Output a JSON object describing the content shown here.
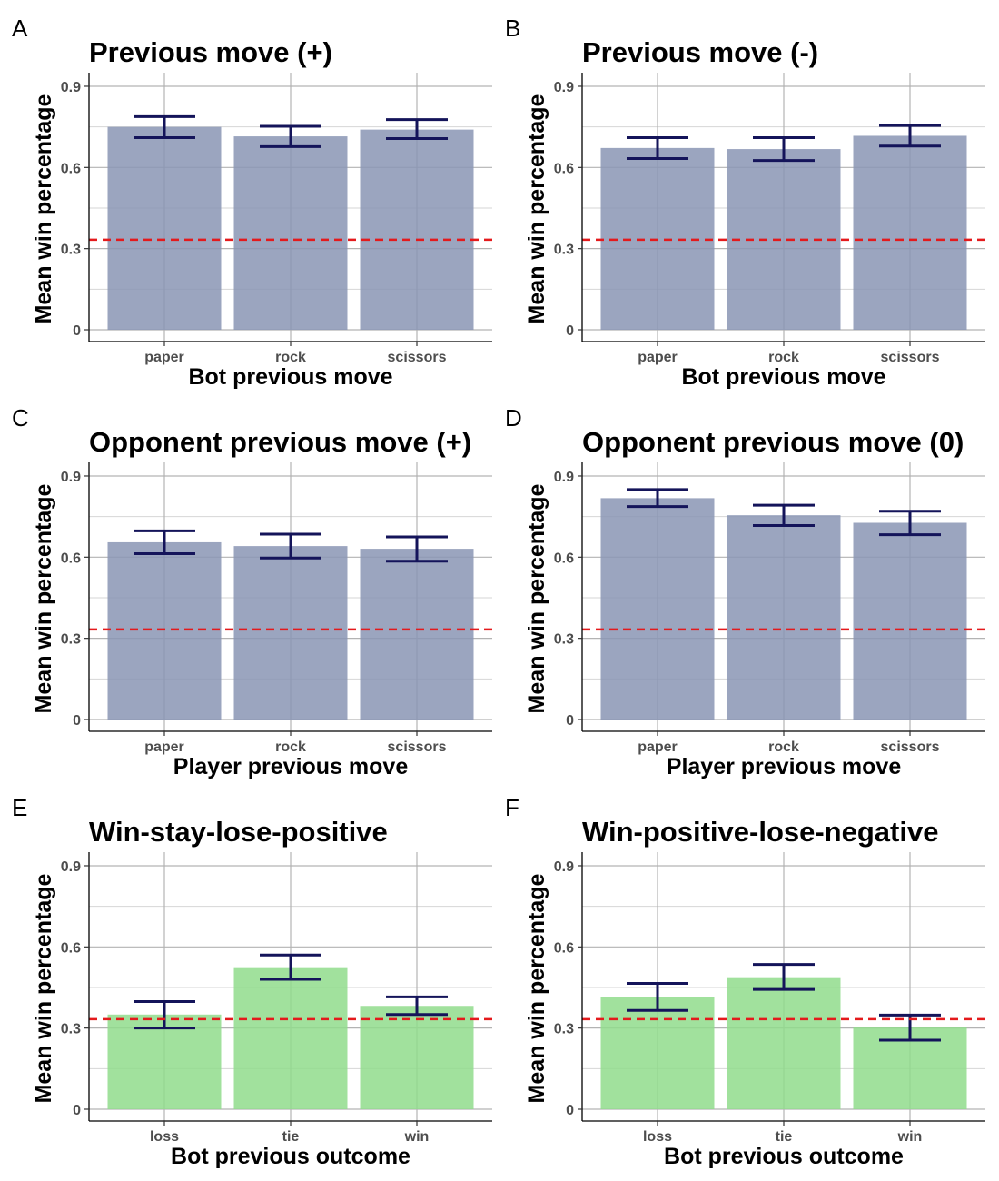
{
  "colors": {
    "move_bar": "#8a95b4",
    "outcome_bar": "#90dc8c",
    "errorbar": "#14145a",
    "chance_line": "#e41a1c",
    "grid_major": "#b3b3b3",
    "grid_minor": "#d6d6d6"
  },
  "chart_data": [
    {
      "panel": "A",
      "type": "bar",
      "title": "Previous move (+)",
      "xlabel": "Bot previous move",
      "ylabel": "Mean win percentage",
      "categories": [
        "paper",
        "rock",
        "scissors"
      ],
      "values": [
        0.75,
        0.715,
        0.74
      ],
      "error_low": [
        0.71,
        0.677,
        0.707
      ],
      "error_high": [
        0.788,
        0.752,
        0.777
      ],
      "yticks": [
        "0",
        "0.3",
        "0.6",
        "0.9"
      ],
      "ylim": [
        0,
        0.95
      ],
      "chance_line": 0.333,
      "bar_color_key": "move_bar"
    },
    {
      "panel": "B",
      "type": "bar",
      "title": "Previous move (-)",
      "xlabel": "Bot previous move",
      "ylabel": "Mean win percentage",
      "categories": [
        "paper",
        "rock",
        "scissors"
      ],
      "values": [
        0.672,
        0.668,
        0.717
      ],
      "error_low": [
        0.633,
        0.626,
        0.679
      ],
      "error_high": [
        0.71,
        0.71,
        0.755
      ],
      "yticks": [
        "0",
        "0.3",
        "0.6",
        "0.9"
      ],
      "ylim": [
        0,
        0.95
      ],
      "chance_line": 0.333,
      "bar_color_key": "move_bar"
    },
    {
      "panel": "C",
      "type": "bar",
      "title": "Opponent previous move (+)",
      "xlabel": "Player previous move",
      "ylabel": "Mean win percentage",
      "categories": [
        "paper",
        "rock",
        "scissors"
      ],
      "values": [
        0.655,
        0.641,
        0.631
      ],
      "error_low": [
        0.613,
        0.597,
        0.585
      ],
      "error_high": [
        0.697,
        0.685,
        0.675
      ],
      "yticks": [
        "0",
        "0.3",
        "0.6",
        "0.9"
      ],
      "ylim": [
        0,
        0.95
      ],
      "chance_line": 0.333,
      "bar_color_key": "move_bar"
    },
    {
      "panel": "D",
      "type": "bar",
      "title": "Opponent previous move (0)",
      "xlabel": "Player previous move",
      "ylabel": "Mean win percentage",
      "categories": [
        "paper",
        "rock",
        "scissors"
      ],
      "values": [
        0.818,
        0.755,
        0.727
      ],
      "error_low": [
        0.787,
        0.717,
        0.683
      ],
      "error_high": [
        0.85,
        0.792,
        0.77
      ],
      "yticks": [
        "0",
        "0.3",
        "0.6",
        "0.9"
      ],
      "ylim": [
        0,
        0.95
      ],
      "chance_line": 0.333,
      "bar_color_key": "move_bar"
    },
    {
      "panel": "E",
      "type": "bar",
      "title": "Win-stay-lose-positive",
      "xlabel": "Bot previous outcome",
      "ylabel": "Mean win percentage",
      "categories": [
        "loss",
        "tie",
        "win"
      ],
      "values": [
        0.35,
        0.525,
        0.382
      ],
      "error_low": [
        0.3,
        0.48,
        0.35
      ],
      "error_high": [
        0.398,
        0.57,
        0.415
      ],
      "yticks": [
        "0",
        "0.3",
        "0.6",
        "0.9"
      ],
      "ylim": [
        0,
        0.95
      ],
      "chance_line": 0.333,
      "bar_color_key": "outcome_bar"
    },
    {
      "panel": "F",
      "type": "bar",
      "title": "Win-positive-lose-negative",
      "xlabel": "Bot previous outcome",
      "ylabel": "Mean win percentage",
      "categories": [
        "loss",
        "tie",
        "win"
      ],
      "values": [
        0.415,
        0.488,
        0.302
      ],
      "error_low": [
        0.365,
        0.443,
        0.255
      ],
      "error_high": [
        0.465,
        0.535,
        0.348
      ],
      "yticks": [
        "0",
        "0.3",
        "0.6",
        "0.9"
      ],
      "ylim": [
        0,
        0.95
      ],
      "chance_line": 0.333,
      "bar_color_key": "outcome_bar"
    }
  ]
}
